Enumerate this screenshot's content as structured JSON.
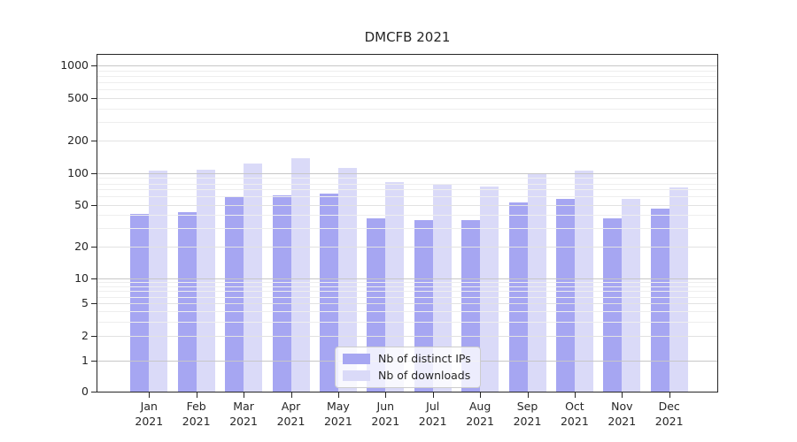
{
  "chart_data": {
    "type": "bar",
    "title": "DMCFB 2021",
    "categories": [
      "Jan 2021",
      "Feb 2021",
      "Mar 2021",
      "Apr 2021",
      "May 2021",
      "Jun 2021",
      "Jul 2021",
      "Aug 2021",
      "Sep 2021",
      "Oct 2021",
      "Nov 2021",
      "Dec 2021"
    ],
    "series": [
      {
        "name": "Nb of distinct IPs",
        "color": "#a6a6f2",
        "values": [
          41,
          43,
          60,
          62,
          64,
          37,
          36,
          36,
          53,
          57,
          37,
          46
        ]
      },
      {
        "name": "Nb of downloads",
        "color": "#dadaf8",
        "values": [
          105,
          107,
          124,
          139,
          112,
          82,
          78,
          75,
          100,
          106,
          57,
          73
        ]
      }
    ],
    "yscale": "symlog",
    "yticks": [
      0,
      1,
      2,
      5,
      10,
      20,
      50,
      100,
      200,
      500,
      1000
    ],
    "ylim": [
      0,
      1250
    ],
    "xlabel": "",
    "ylabel": "",
    "grid": true,
    "legend_position": "lower center"
  },
  "colors": {
    "grid_decade": "#c7c7c7",
    "grid_tick": "#e2e2e2",
    "grid_minor": "#eeeeee",
    "spine": "#262626",
    "background": "#ffffff"
  }
}
